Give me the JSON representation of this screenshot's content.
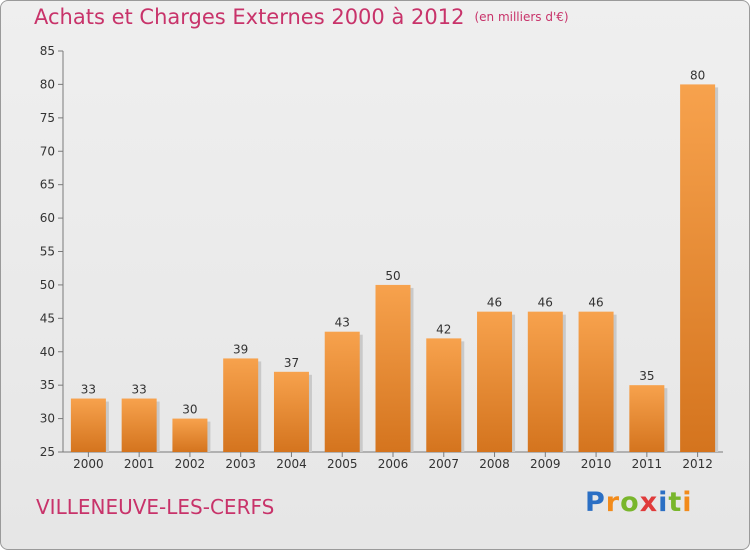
{
  "header": {
    "title": "Achats et Charges Externes 2000 à 2012",
    "unit": "(en milliers d'€)"
  },
  "footer": {
    "commune": "VILLENEUVE-LES-CERFS",
    "brand": [
      "P",
      "r",
      "o",
      "x",
      "i",
      "t",
      "i"
    ]
  },
  "colors": {
    "title": "#c8336a",
    "bar_light": "#f7a24d",
    "bar_dark": "#d4741e",
    "brand": [
      "#2b6fc4",
      "#f28b1b",
      "#79b62c",
      "#e03b3b",
      "#2b6fc4",
      "#79b62c",
      "#f28b1b"
    ]
  },
  "chart_data": {
    "type": "bar",
    "categories": [
      "2000",
      "2001",
      "2002",
      "2003",
      "2004",
      "2005",
      "2006",
      "2007",
      "2008",
      "2009",
      "2010",
      "2011",
      "2012"
    ],
    "values": [
      33,
      33,
      30,
      39,
      37,
      43,
      50,
      42,
      46,
      46,
      46,
      35,
      80
    ],
    "ylim": [
      25,
      85
    ],
    "yticks": [
      25,
      30,
      35,
      40,
      45,
      50,
      55,
      60,
      65,
      70,
      75,
      80,
      85
    ],
    "grid": false,
    "data_labels": true
  }
}
